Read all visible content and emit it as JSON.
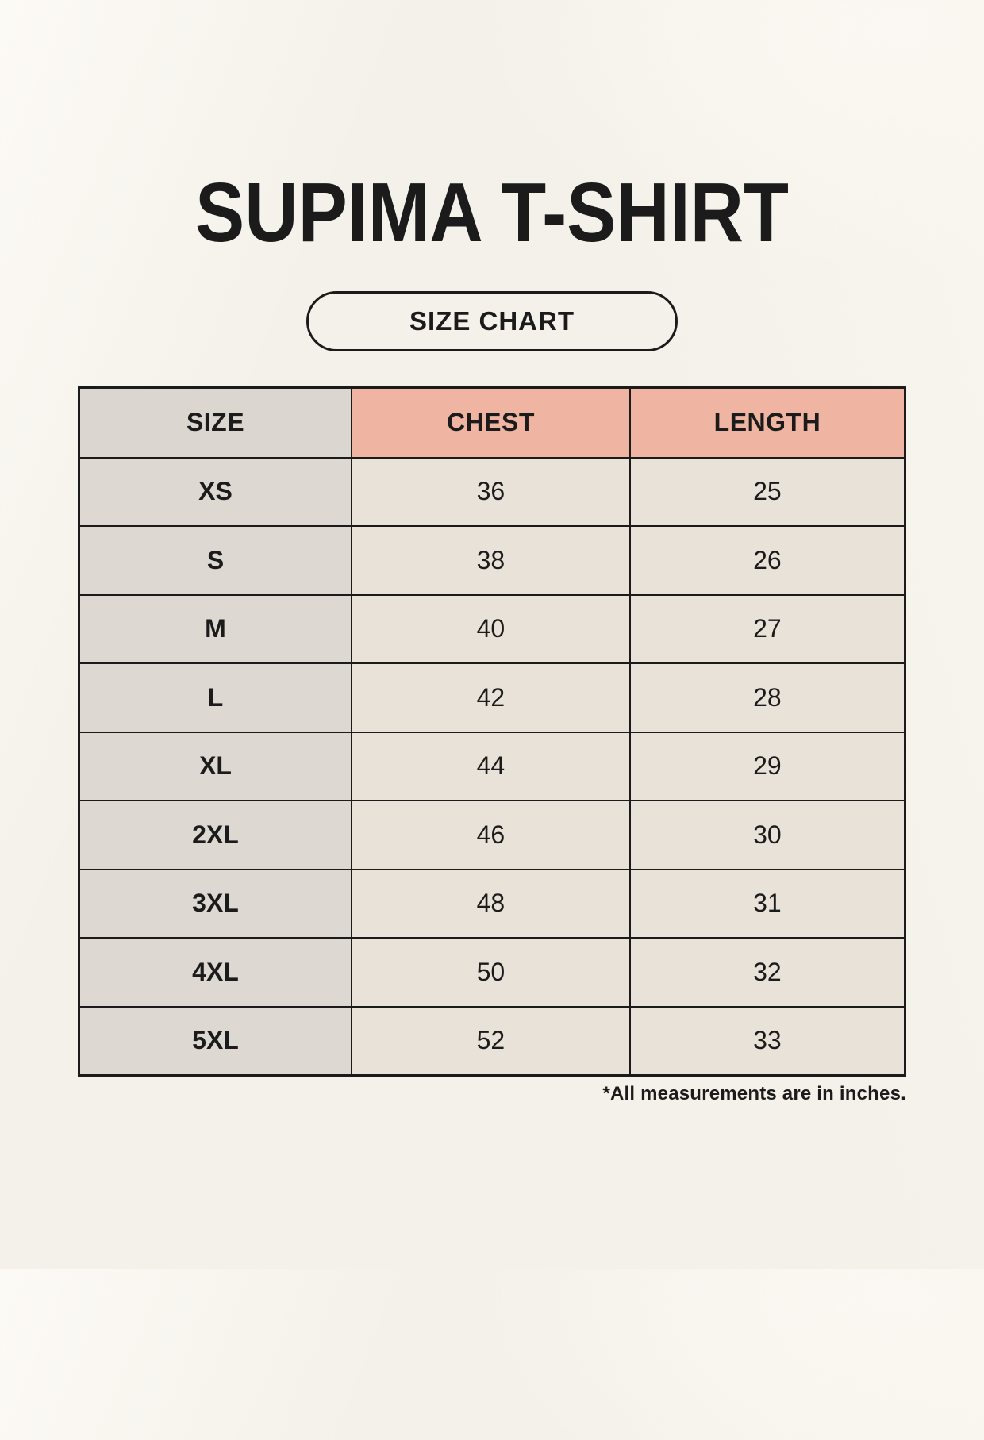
{
  "title": "SUPIMA T-SHIRT",
  "badge_label": "SIZE CHART",
  "footnote": "*All measurements are in inches.",
  "chart_data": {
    "type": "table",
    "title": "SUPIMA T-SHIRT",
    "subtitle": "SIZE CHART",
    "units": "inches",
    "columns": [
      "SIZE",
      "CHEST",
      "LENGTH"
    ],
    "rows": [
      [
        "XS",
        "36",
        "25"
      ],
      [
        "S",
        "38",
        "26"
      ],
      [
        "M",
        "40",
        "27"
      ],
      [
        "L",
        "42",
        "28"
      ],
      [
        "XL",
        "44",
        "29"
      ],
      [
        "2XL",
        "46",
        "30"
      ],
      [
        "3XL",
        "48",
        "31"
      ],
      [
        "4XL",
        "50",
        "32"
      ],
      [
        "5XL",
        "52",
        "33"
      ]
    ],
    "note": "*All measurements are in inches."
  },
  "colors": {
    "background": "#f4f1ea",
    "header_neutral": "#dcd6d1",
    "header_accent": "#f0b4a2",
    "row_label_bg": "#ded8d3",
    "cell_bg": "#e8e2d8",
    "border": "#1b1b1b",
    "text": "#1b1b1b"
  }
}
